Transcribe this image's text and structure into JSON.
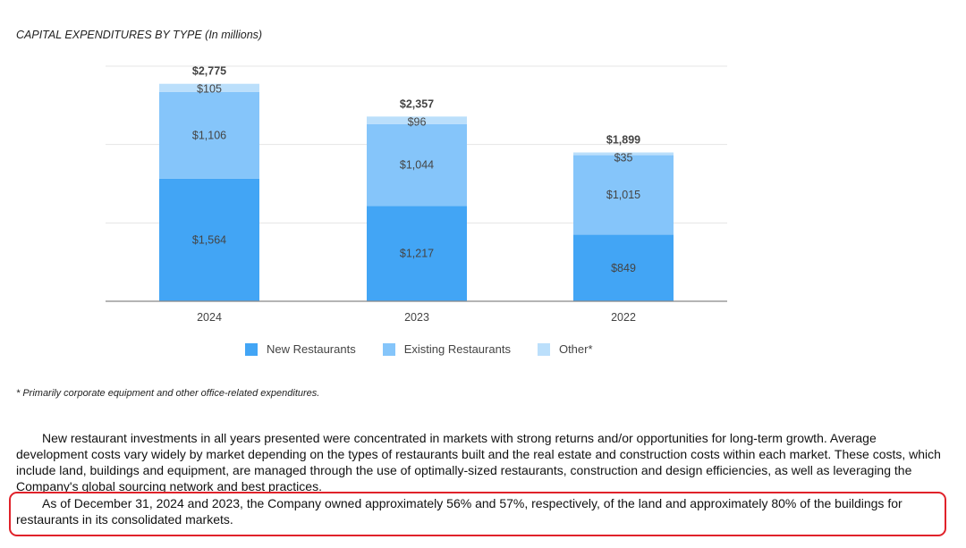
{
  "chart_data": {
    "type": "bar",
    "stacked": true,
    "title": "CAPITAL EXPENDITURES BY TYPE (In millions)",
    "categories": [
      "2024",
      "2023",
      "2022"
    ],
    "series": [
      {
        "name": "New Restaurants",
        "values": [
          1564,
          1217,
          849
        ],
        "labels": [
          "$1,564",
          "$1,217",
          "$849"
        ],
        "color": "#42a5f5"
      },
      {
        "name": "Existing Restaurants",
        "values": [
          1106,
          1044,
          1015
        ],
        "labels": [
          "$1,106",
          "$1,044",
          "$1,015"
        ],
        "color": "#85c5fa"
      },
      {
        "name": "Other*",
        "values": [
          105,
          96,
          35
        ],
        "labels": [
          "$105",
          "$96",
          "$35"
        ],
        "color": "#bbdffb"
      }
    ],
    "totals": [
      "$2,775",
      "$2,357",
      "$1,899"
    ],
    "ylim": [
      0,
      3000
    ],
    "grid": true,
    "legend_position": "bottom"
  },
  "footnote": "* Primarily corporate equipment and other office-related expenditures.",
  "paragraphs": {
    "p1": "New restaurant investments in all years presented were concentrated in markets with strong returns and/or opportunities for long-term growth. Average development costs vary widely by market depending on the types of restaurants built and the real estate and construction costs within each market. These costs, which include land, buildings and equipment, are managed through the use of optimally-sized restaurants, construction and design efficiencies, as well as leveraging the Company's global sourcing network and best practices.",
    "p2": "As of December 31, 2024 and 2023, the Company owned approximately 56% and 57%, respectively, of the land and approximately 80% of the buildings for restaurants in its consolidated markets."
  },
  "colors": {
    "highlight_border": "#e0222a"
  }
}
